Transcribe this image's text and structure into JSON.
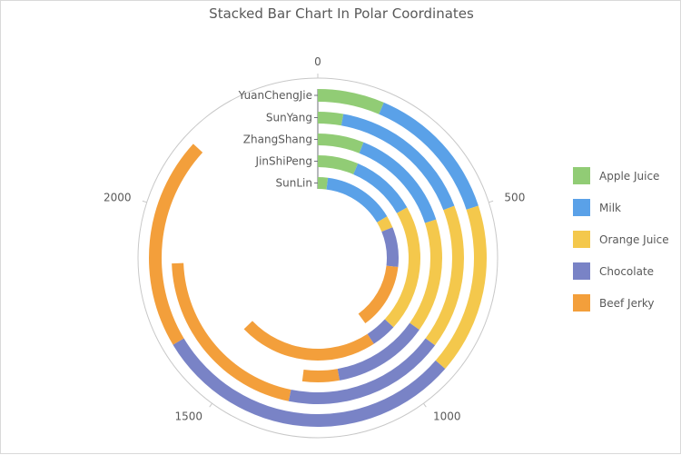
{
  "chart_data": {
    "type": "bar",
    "subtype": "stacked-polar",
    "title": "Stacked Bar Chart In Polar Coordinates",
    "categories": [
      "YuanChengJie",
      "SunYang",
      "ZhangShang",
      "JinShiPeng",
      "SunLin"
    ],
    "series": [
      {
        "name": "Apple Juice",
        "color": "#91cc75",
        "values": [
          160,
          70,
          150,
          160,
          50
        ]
      },
      {
        "name": "Milk",
        "color": "#5aa1e8",
        "values": [
          340,
          410,
          350,
          260,
          360
        ]
      },
      {
        "name": "Orange Juice",
        "color": "#f4c84c",
        "values": [
          410,
          400,
          370,
          500,
          60
        ]
      },
      {
        "name": "Chocolate",
        "color": "#7983c6",
        "values": [
          750,
          450,
          310,
          100,
          200
        ]
      },
      {
        "name": "Beef Jerky",
        "color": "#f39f3b",
        "values": [
          510,
          530,
          120,
          550,
          330
        ]
      }
    ],
    "angle_axis": {
      "min": 0,
      "max": 2500,
      "ticks": [
        0,
        500,
        1000,
        1500,
        2000
      ]
    },
    "legend_position": "right",
    "grid": false
  }
}
